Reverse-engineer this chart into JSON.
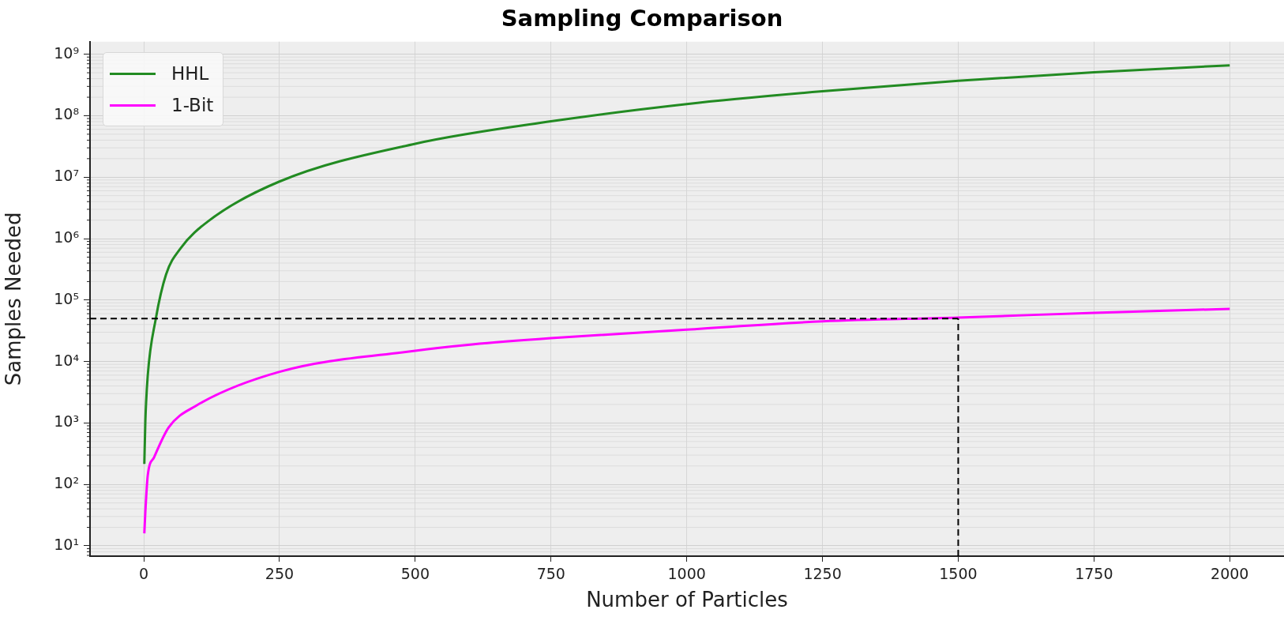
{
  "chart_data": {
    "type": "line",
    "title": "Sampling Comparison",
    "xlabel": "Number of Particles",
    "ylabel": "Samples Needed",
    "series": [
      {
        "name": "HHL",
        "color": "#228b22",
        "x": [
          1,
          2.9,
          7.3,
          22,
          41,
          68,
          118,
          250,
          500,
          750,
          1000,
          1250,
          1500,
          1750,
          2000
        ],
        "values": [
          215,
          1070,
          5900,
          49000,
          260000,
          700000,
          1900000,
          8500000,
          35000000,
          81000000,
          155000000,
          250000000,
          370000000,
          510000000,
          660000000
        ]
      },
      {
        "name": "1-Bit",
        "color": "#ff00ff",
        "x": [
          1,
          2.9,
          7.3,
          19,
          46,
          96,
          250,
          500,
          605,
          750,
          1000,
          1250,
          1500,
          1750,
          2000
        ],
        "values": [
          16,
          36,
          140,
          276,
          850,
          1900,
          6800,
          15000,
          19000,
          24000,
          33000,
          45000,
          52000,
          62000,
          72000
        ]
      }
    ],
    "xlim": [
      -99,
      2100
    ],
    "xticks": [
      0,
      250,
      500,
      750,
      1000,
      1250,
      1500,
      1750,
      2000
    ],
    "ylim": [
      6.8,
      1600000000
    ],
    "yticks": [
      {
        "value": 10,
        "label": "10¹"
      },
      {
        "value": 100,
        "label": "10²"
      },
      {
        "value": 1000,
        "label": "10³"
      },
      {
        "value": 10000,
        "label": "10⁴"
      },
      {
        "value": 100000,
        "label": "10⁵"
      },
      {
        "value": 1000000,
        "label": "10⁶"
      },
      {
        "value": 10000000,
        "label": "10⁷"
      },
      {
        "value": 100000000,
        "label": "10⁸"
      },
      {
        "value": 1000000000,
        "label": "10⁹"
      }
    ],
    "log": "y",
    "grid": true,
    "legend": "top left",
    "line_style": "solid",
    "marker": "none",
    "ref_lines": [
      {
        "axis": "y",
        "value": 50000,
        "color": "#000000",
        "line_style": "dashed"
      },
      {
        "axis": "x",
        "value": 1500,
        "color": "#000000",
        "line_style": "dashed"
      }
    ]
  }
}
